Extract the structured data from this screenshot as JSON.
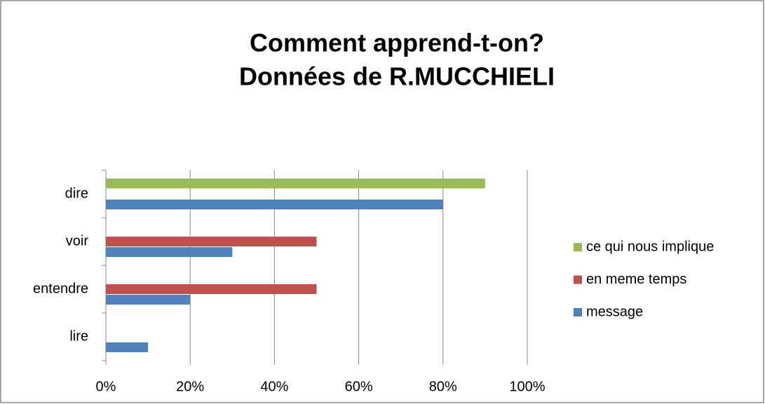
{
  "chart_data": {
    "type": "bar",
    "orientation": "horizontal",
    "title": [
      "Comment apprend-t-on?",
      "Données de R.MUCCHIELI"
    ],
    "categories": [
      "lire",
      "entendre",
      "voir",
      "dire"
    ],
    "series": [
      {
        "name": "message",
        "color": "#4f81bd",
        "values": [
          10,
          20,
          30,
          80
        ]
      },
      {
        "name": "en meme temps",
        "color": "#c0504d",
        "values": [
          null,
          50,
          50,
          null
        ]
      },
      {
        "name": "ce qui nous implique",
        "color": "#9bbb59",
        "values": [
          null,
          null,
          null,
          90
        ]
      }
    ],
    "xlim": [
      0,
      100
    ],
    "xticks": [
      {
        "value": 0,
        "label": "0%"
      },
      {
        "value": 20,
        "label": "20%"
      },
      {
        "value": 40,
        "label": "40%"
      },
      {
        "value": 60,
        "label": "60%"
      },
      {
        "value": 80,
        "label": "80%"
      },
      {
        "value": 100,
        "label": "100%"
      }
    ],
    "grid": true,
    "legend": "right"
  }
}
